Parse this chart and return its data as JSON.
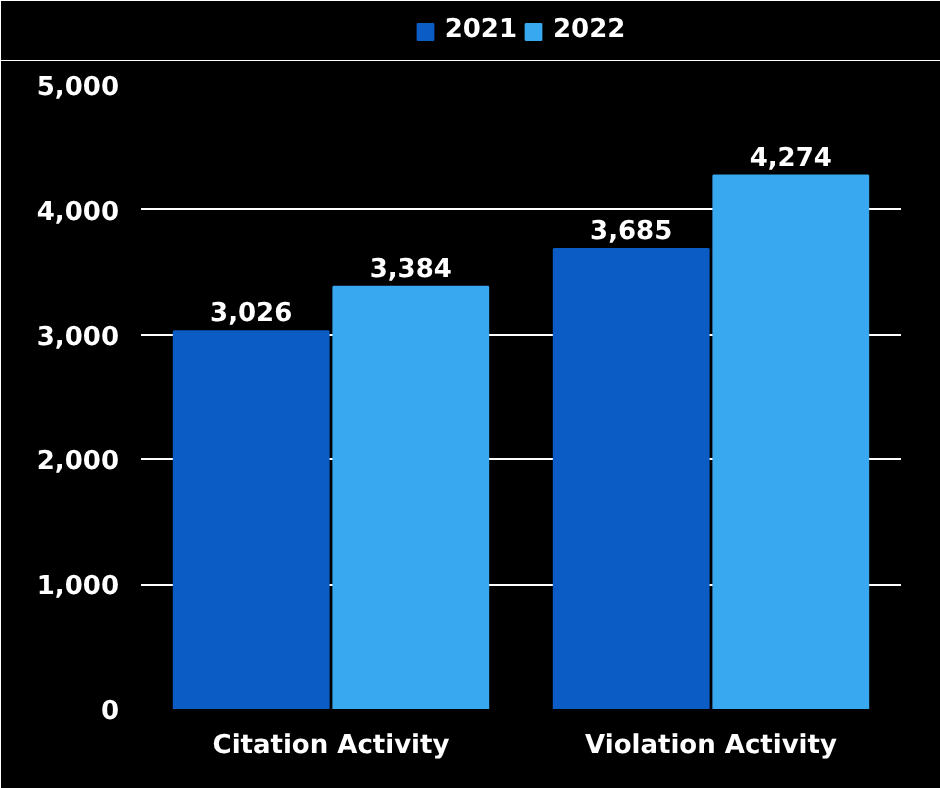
{
  "chart_data": {
    "type": "bar",
    "categories": [
      "Citation Activity",
      "Violation Activity"
    ],
    "series": [
      {
        "name": "2021",
        "color": "#0b5cc4",
        "values": [
          3026,
          3685
        ]
      },
      {
        "name": "2022",
        "color": "#38a8f0",
        "values": [
          3384,
          4274
        ]
      }
    ],
    "ylim": [
      0,
      5000
    ],
    "yticks": [
      {
        "value": 0,
        "label": "0"
      },
      {
        "value": 1000,
        "label": "1,000"
      },
      {
        "value": 2000,
        "label": "2,000"
      },
      {
        "value": 3000,
        "label": "3,000"
      },
      {
        "value": 4000,
        "label": "4,000"
      },
      {
        "value": 5000,
        "label": "5,000"
      }
    ],
    "value_labels": [
      [
        "3,026",
        "3,685"
      ],
      [
        "3,384",
        "4,274"
      ]
    ],
    "grid": "y",
    "legend": "top"
  }
}
